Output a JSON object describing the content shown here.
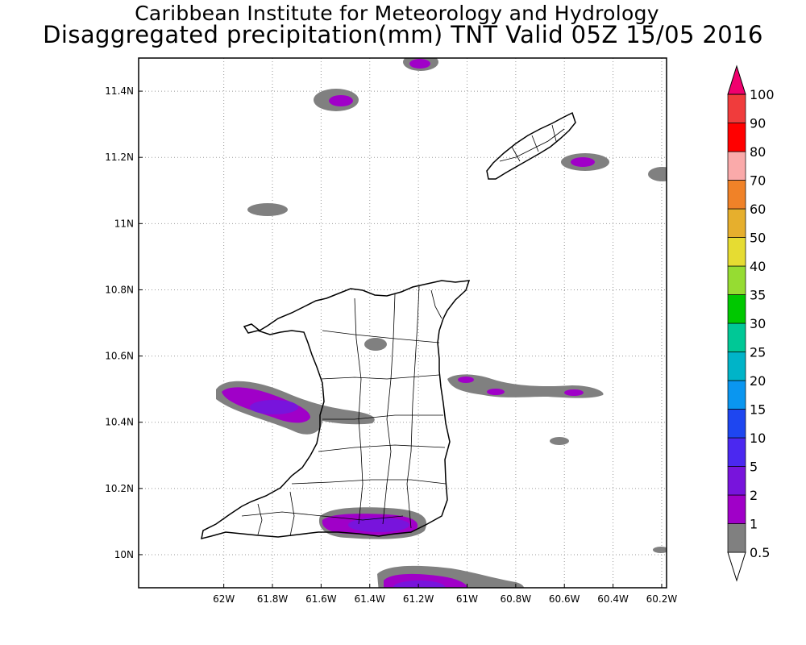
{
  "header": {
    "title": "Caribbean Institute for Meteorology and Hydrology",
    "subtitle": "Disaggregated precipitation(mm) TNT Valid 05Z 15/05 2016"
  },
  "map": {
    "lon_range": [
      -62.35,
      -60.18
    ],
    "lat_range": [
      9.9,
      11.5
    ],
    "lon_ticks": [
      {
        "value": -62.0,
        "label": "62W"
      },
      {
        "value": -61.8,
        "label": "61.8W"
      },
      {
        "value": -61.6,
        "label": "61.6W"
      },
      {
        "value": -61.4,
        "label": "61.4W"
      },
      {
        "value": -61.2,
        "label": "61.2W"
      },
      {
        "value": -61.0,
        "label": "61W"
      },
      {
        "value": -60.8,
        "label": "60.8W"
      },
      {
        "value": -60.6,
        "label": "60.6W"
      },
      {
        "value": -60.4,
        "label": "60.4W"
      },
      {
        "value": -60.2,
        "label": "60.2W"
      }
    ],
    "lat_ticks": [
      {
        "value": 10.0,
        "label": "10N"
      },
      {
        "value": 10.2,
        "label": "10.2N"
      },
      {
        "value": 10.4,
        "label": "10.4N"
      },
      {
        "value": 10.6,
        "label": "10.6N"
      },
      {
        "value": 10.8,
        "label": "10.8N"
      },
      {
        "value": 11.0,
        "label": "11N"
      },
      {
        "value": 11.2,
        "label": "11.2N"
      },
      {
        "value": 11.4,
        "label": "11.4N"
      }
    ],
    "gridlines": true,
    "colors": {
      "band_0_5_1": "#808080",
      "band_1_2": "#a000c8",
      "band_2_5": "#7814dc",
      "coast": "#000000"
    }
  },
  "legend": {
    "levels": [
      "0.5",
      "1",
      "2",
      "5",
      "10",
      "15",
      "20",
      "25",
      "30",
      "35",
      "40",
      "50",
      "60",
      "70",
      "80",
      "90",
      "100"
    ],
    "colors": [
      "#808080",
      "#a000c8",
      "#7814dc",
      "#4b28f0",
      "#1e46f0",
      "#0a96f0",
      "#00b4c8",
      "#00c896",
      "#00c800",
      "#96dc32",
      "#e6dc32",
      "#e6af2d",
      "#f08228",
      "#faaaaa",
      "#ff0000",
      "#f03c3c",
      "#f0006e"
    ]
  }
}
